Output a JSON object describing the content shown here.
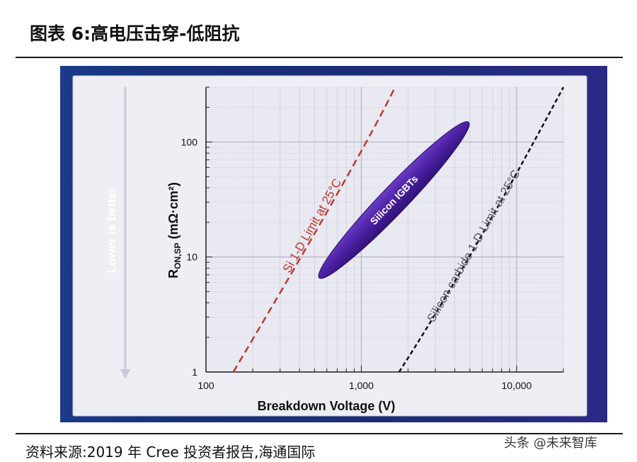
{
  "figure_title": "图表 6:高电压击穿-低阻抗",
  "source_note": "资料来源:2019 年 Cree 投资者报告,海通国际",
  "watermark": "头条 @未来智库",
  "colors": {
    "panel_blue": "#1b2c74",
    "plot_bg": "#e9e9f3",
    "si_limit": "#c0392b",
    "sic_limit": "#111111",
    "igbt_fill": "#4a1fa0"
  },
  "chart_data": {
    "type": "line",
    "title": "",
    "xlabel": "Breakdown Voltage (V)",
    "ylabel_main": "R",
    "ylabel_sub": "ON,SP",
    "ylabel_unit": " (mΩ·cm²)",
    "x_scale": "log",
    "y_scale": "log",
    "xlim": [
      100,
      20000
    ],
    "ylim": [
      1,
      300
    ],
    "x_ticks": [
      100,
      1000,
      10000
    ],
    "x_tick_labels": [
      "100",
      "1,000",
      "10,000"
    ],
    "y_ticks": [
      1,
      10,
      100
    ],
    "y_tick_labels": [
      "1",
      "10",
      "100"
    ],
    "grid": true,
    "side_arrow_label": "Lower is better",
    "series": [
      {
        "name": "Si 1-D Limit at 25°C",
        "style": "dashed",
        "color": "#c0392b",
        "x": [
          150,
          1000,
          1650
        ],
        "y": [
          1,
          75,
          300
        ]
      },
      {
        "name": "Silicon carbide 1-D Limit at 25°C",
        "style": "dashed",
        "color": "#111111",
        "x": [
          1750,
          5000,
          20000
        ],
        "y": [
          1,
          9,
          300
        ]
      }
    ],
    "regions": [
      {
        "name": "Silicon IGBTs",
        "shape": "ellipse",
        "x_range": [
          560,
          4700
        ],
        "y_range": [
          7,
          140
        ]
      }
    ]
  }
}
